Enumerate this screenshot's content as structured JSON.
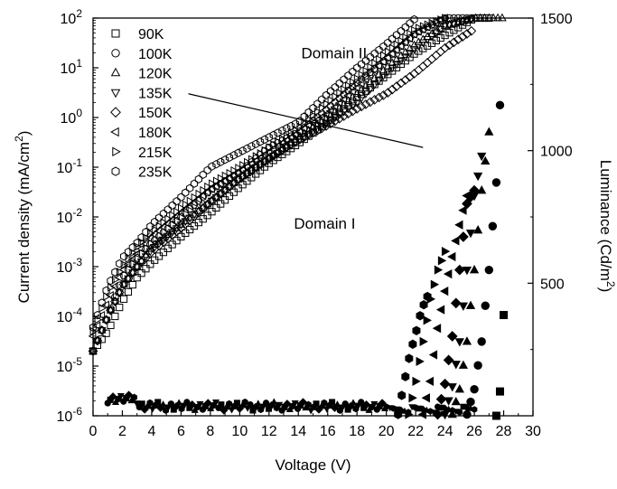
{
  "chart_data": {
    "type": "scatter",
    "xlabel": "Voltage (V)",
    "ylabel_left": "Current density (mA/cm",
    "ylabel_left_sup": "2",
    "ylabel_left_end": ")",
    "ylabel_right": "Luminance (Cd/m",
    "ylabel_right_sup": "2",
    "ylabel_right_end": ")",
    "xlim": [
      0,
      30
    ],
    "x_ticks": [
      0,
      2,
      4,
      6,
      8,
      10,
      12,
      14,
      16,
      18,
      20,
      22,
      24,
      26,
      28,
      30
    ],
    "ylim_left": [
      1e-06,
      100
    ],
    "yscale_left": "log",
    "y_ticks_left": [
      {
        "base": "10",
        "exp": "-6"
      },
      {
        "base": "10",
        "exp": "-5"
      },
      {
        "base": "10",
        "exp": "-4"
      },
      {
        "base": "10",
        "exp": "-3"
      },
      {
        "base": "10",
        "exp": "-2"
      },
      {
        "base": "10",
        "exp": "-1"
      },
      {
        "base": "10",
        "exp": "0"
      },
      {
        "base": "10",
        "exp": "1"
      },
      {
        "base": "10",
        "exp": "2"
      }
    ],
    "ylim_right": [
      0,
      1500
    ],
    "y_ticks_right": [
      500,
      1000,
      1500
    ],
    "legend_position": "top-left",
    "annotations": [
      {
        "text": "Domain II",
        "x": 14.2,
        "y": 20
      },
      {
        "text": "Domain I",
        "x": 13.7,
        "y": 0.0075
      }
    ],
    "domain_line": {
      "x": [
        6.5,
        22.5
      ],
      "y": [
        3.0,
        0.25
      ]
    },
    "series": [
      {
        "name": "90K",
        "marker": "square",
        "current_density": {
          "x": [
            0,
            1,
            2,
            3,
            4,
            6,
            8,
            10,
            12,
            14,
            16,
            18,
            20,
            22,
            24,
            26,
            27
          ],
          "y": [
            2e-05,
            5e-05,
            0.0002,
            0.0006,
            0.0012,
            0.004,
            0.012,
            0.04,
            0.12,
            0.3,
            0.8,
            2.5,
            7,
            20,
            45,
            100,
            100
          ]
        },
        "luminance": {
          "x": [
            27.5,
            27.8,
            28.0
          ],
          "y": [
            0,
            110,
            380
          ]
        }
      },
      {
        "name": "100K",
        "marker": "circle",
        "current_density": {
          "x": [
            0,
            1,
            2,
            3,
            4,
            6,
            8,
            10,
            12,
            14,
            16,
            18,
            20,
            22,
            24,
            26
          ],
          "y": [
            2e-05,
            0.0001,
            0.0006,
            0.0015,
            0.003,
            0.01,
            0.035,
            0.08,
            0.25,
            0.5,
            1.5,
            5,
            15,
            50,
            100,
            100
          ]
        },
        "luminance": {
          "x": [
            25.5,
            26.0,
            26.5,
            27.0,
            27.5,
            27.8
          ],
          "y": [
            5,
            100,
            280,
            550,
            880,
            1230
          ]
        }
      },
      {
        "name": "120K",
        "marker": "triangle-up",
        "current_density": {
          "x": [
            0,
            1,
            2,
            3,
            4,
            6,
            8,
            10,
            12,
            14,
            16,
            18,
            20,
            22,
            24,
            26,
            28
          ],
          "y": [
            2e-05,
            0.0001,
            0.0004,
            0.001,
            0.0025,
            0.007,
            0.02,
            0.06,
            0.15,
            0.4,
            1,
            3,
            10,
            30,
            70,
            100,
            100
          ]
        },
        "luminance": {
          "x": [
            24.5,
            25.0,
            25.5,
            26.0,
            26.5,
            27.0
          ],
          "y": [
            5,
            100,
            280,
            550,
            850,
            1070
          ]
        }
      },
      {
        "name": "135K",
        "marker": "triangle-down",
        "current_density": {
          "x": [
            0,
            1,
            2,
            3,
            4,
            6,
            8,
            10,
            12,
            14,
            16,
            18,
            20,
            22,
            24,
            26
          ],
          "y": [
            2e-05,
            0.0001,
            0.0004,
            0.001,
            0.0022,
            0.007,
            0.02,
            0.06,
            0.15,
            0.35,
            0.8,
            2,
            8,
            25,
            70,
            100
          ]
        },
        "luminance": {
          "x": [
            24.0,
            24.5,
            25.0,
            25.5,
            26.0,
            26.5
          ],
          "y": [
            5,
            110,
            280,
            550,
            830,
            980
          ]
        }
      },
      {
        "name": "150K",
        "marker": "diamond",
        "current_density": {
          "x": [
            0,
            1,
            2,
            3,
            4,
            6,
            8,
            10,
            12,
            14,
            16,
            18,
            20,
            22,
            24,
            26
          ],
          "y": [
            2e-05,
            0.0001,
            0.0004,
            0.001,
            0.002,
            0.006,
            0.02,
            0.06,
            0.15,
            0.35,
            0.7,
            1.5,
            3,
            8,
            25,
            60
          ]
        },
        "luminance": {
          "x": [
            23.5,
            24.0,
            24.5,
            25.0,
            25.5,
            26.0
          ],
          "y": [
            5,
            120,
            300,
            550,
            800,
            850
          ]
        }
      },
      {
        "name": "180K",
        "marker": "triangle-left",
        "current_density": {
          "x": [
            0,
            1,
            2,
            3,
            4,
            6,
            8,
            10,
            12,
            14,
            16,
            18,
            20,
            22,
            24
          ],
          "y": [
            4e-05,
            0.0002,
            0.0008,
            0.0018,
            0.004,
            0.012,
            0.035,
            0.08,
            0.2,
            0.5,
            1.2,
            4,
            15,
            50,
            100
          ]
        },
        "luminance": {
          "x": [
            22.5,
            23.0,
            23.5,
            24.0,
            24.5,
            25.0,
            25.5
          ],
          "y": [
            5,
            130,
            330,
            470,
            600,
            720,
            830
          ]
        }
      },
      {
        "name": "215K",
        "marker": "triangle-right",
        "current_density": {
          "x": [
            0,
            1,
            2,
            3,
            4,
            6,
            8,
            10,
            12,
            14,
            16,
            18,
            20,
            22,
            24
          ],
          "y": [
            5e-05,
            0.0003,
            0.001,
            0.0025,
            0.005,
            0.015,
            0.045,
            0.1,
            0.25,
            0.6,
            2,
            6,
            20,
            60,
            100
          ]
        },
        "luminance": {
          "x": [
            21.5,
            22.0,
            22.5,
            23.0,
            23.5,
            24.0
          ],
          "y": [
            5,
            130,
            280,
            440,
            550,
            620
          ]
        }
      },
      {
        "name": "235K",
        "marker": "hexagon",
        "current_density": {
          "x": [
            0,
            1,
            2,
            3,
            4,
            6,
            8,
            10,
            12,
            14,
            16,
            18,
            20,
            22
          ],
          "y": [
            6e-05,
            0.0004,
            0.0015,
            0.003,
            0.007,
            0.025,
            0.1,
            0.2,
            0.4,
            0.8,
            3,
            10,
            30,
            100
          ]
        },
        "luminance": {
          "x": [
            20.8,
            21.2,
            21.6,
            22.0,
            22.4,
            22.8
          ],
          "y": [
            5,
            120,
            230,
            310,
            400,
            450
          ]
        }
      }
    ],
    "luminance_baseline": {
      "x_range": [
        1,
        20
      ],
      "y": 0
    }
  }
}
